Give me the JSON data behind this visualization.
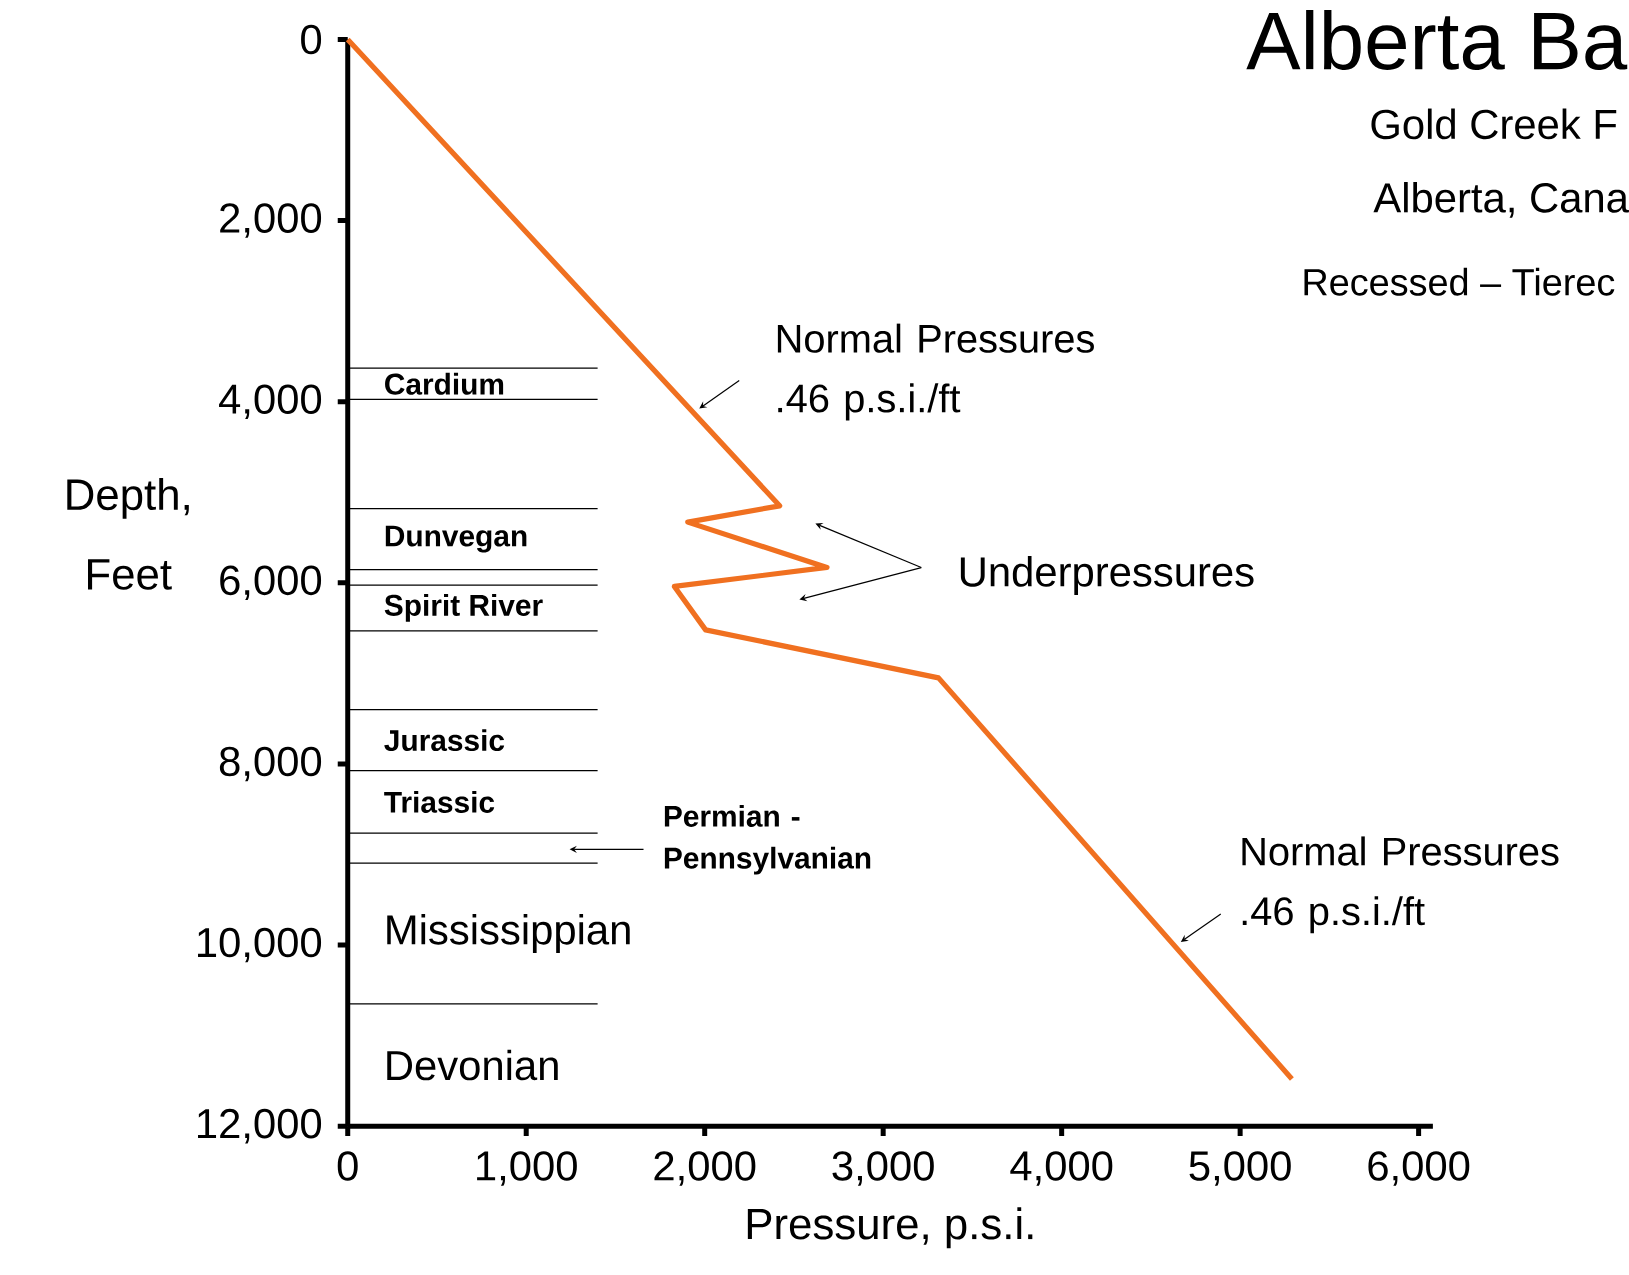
{
  "chart_data": {
    "type": "line",
    "title": "Alberta Ba",
    "subtitle": "Gold Creek F",
    "xlabel": "Pressure, p.s.i.",
    "ylabel": "Depth, Feet",
    "x": [
      0,
      2420,
      1905,
      2685,
      1830,
      2005,
      3310,
      5290
    ],
    "values": [
      0,
      5150,
      5330,
      5830,
      6040,
      6520,
      7050,
      11480
    ],
    "color": "#f07020",
    "xlim": [
      0,
      6080
    ],
    "ylim": [
      12000,
      0
    ],
    "xticks": [
      0,
      {
        "value": 1000,
        "label": "1,000"
      },
      {
        "value": 2000,
        "label": "2,000"
      },
      {
        "value": 3000,
        "label": "3,000"
      },
      {
        "value": 4000,
        "label": "4,000"
      },
      {
        "value": 5000,
        "label": "5,000"
      },
      {
        "value": 6000,
        "label": "6,000"
      }
    ],
    "yticks": [
      0,
      {
        "value": 2000,
        "label": "2,000"
      },
      {
        "value": 4000,
        "label": "4,000"
      },
      {
        "value": 6000,
        "label": "6,000"
      },
      {
        "value": 8000,
        "label": "8,000"
      },
      {
        "value": 10000,
        "label": "10,000"
      },
      {
        "value": 12000,
        "label": "12,000"
      }
    ],
    "ref_lines": [
      {
        "axis": "y",
        "value": 3630,
        "label": "Cardium"
      },
      {
        "axis": "y",
        "value": 3975
      },
      {
        "axis": "y",
        "value": 5180,
        "label": "Dunvegan"
      },
      {
        "axis": "y",
        "value": 5855
      },
      {
        "axis": "y",
        "value": 6025,
        "label": "Spirit River"
      },
      {
        "axis": "y",
        "value": 6530
      },
      {
        "axis": "y",
        "value": 7400,
        "label": "Jurassic"
      },
      {
        "axis": "y",
        "value": 8075,
        "label": "Triassic"
      },
      {
        "axis": "y",
        "value": 8765
      },
      {
        "axis": "y",
        "value": 9095,
        "label": "Mississippian"
      },
      {
        "axis": "y",
        "value": 10650,
        "label": "Devonian"
      }
    ],
    "annotations": [
      "Alberta, Cana",
      "Recessed – Tierec",
      "Underpressures",
      "Permian - Pennsylvanian",
      {
        "text": "Normal Pressures .46 p.s.i./ft",
        "x": 1936,
        "y": 4120
      },
      {
        "text": "Normal Pressures .46 p.s.i./ft",
        "x": 4634,
        "y": 10010
      }
    ]
  }
}
